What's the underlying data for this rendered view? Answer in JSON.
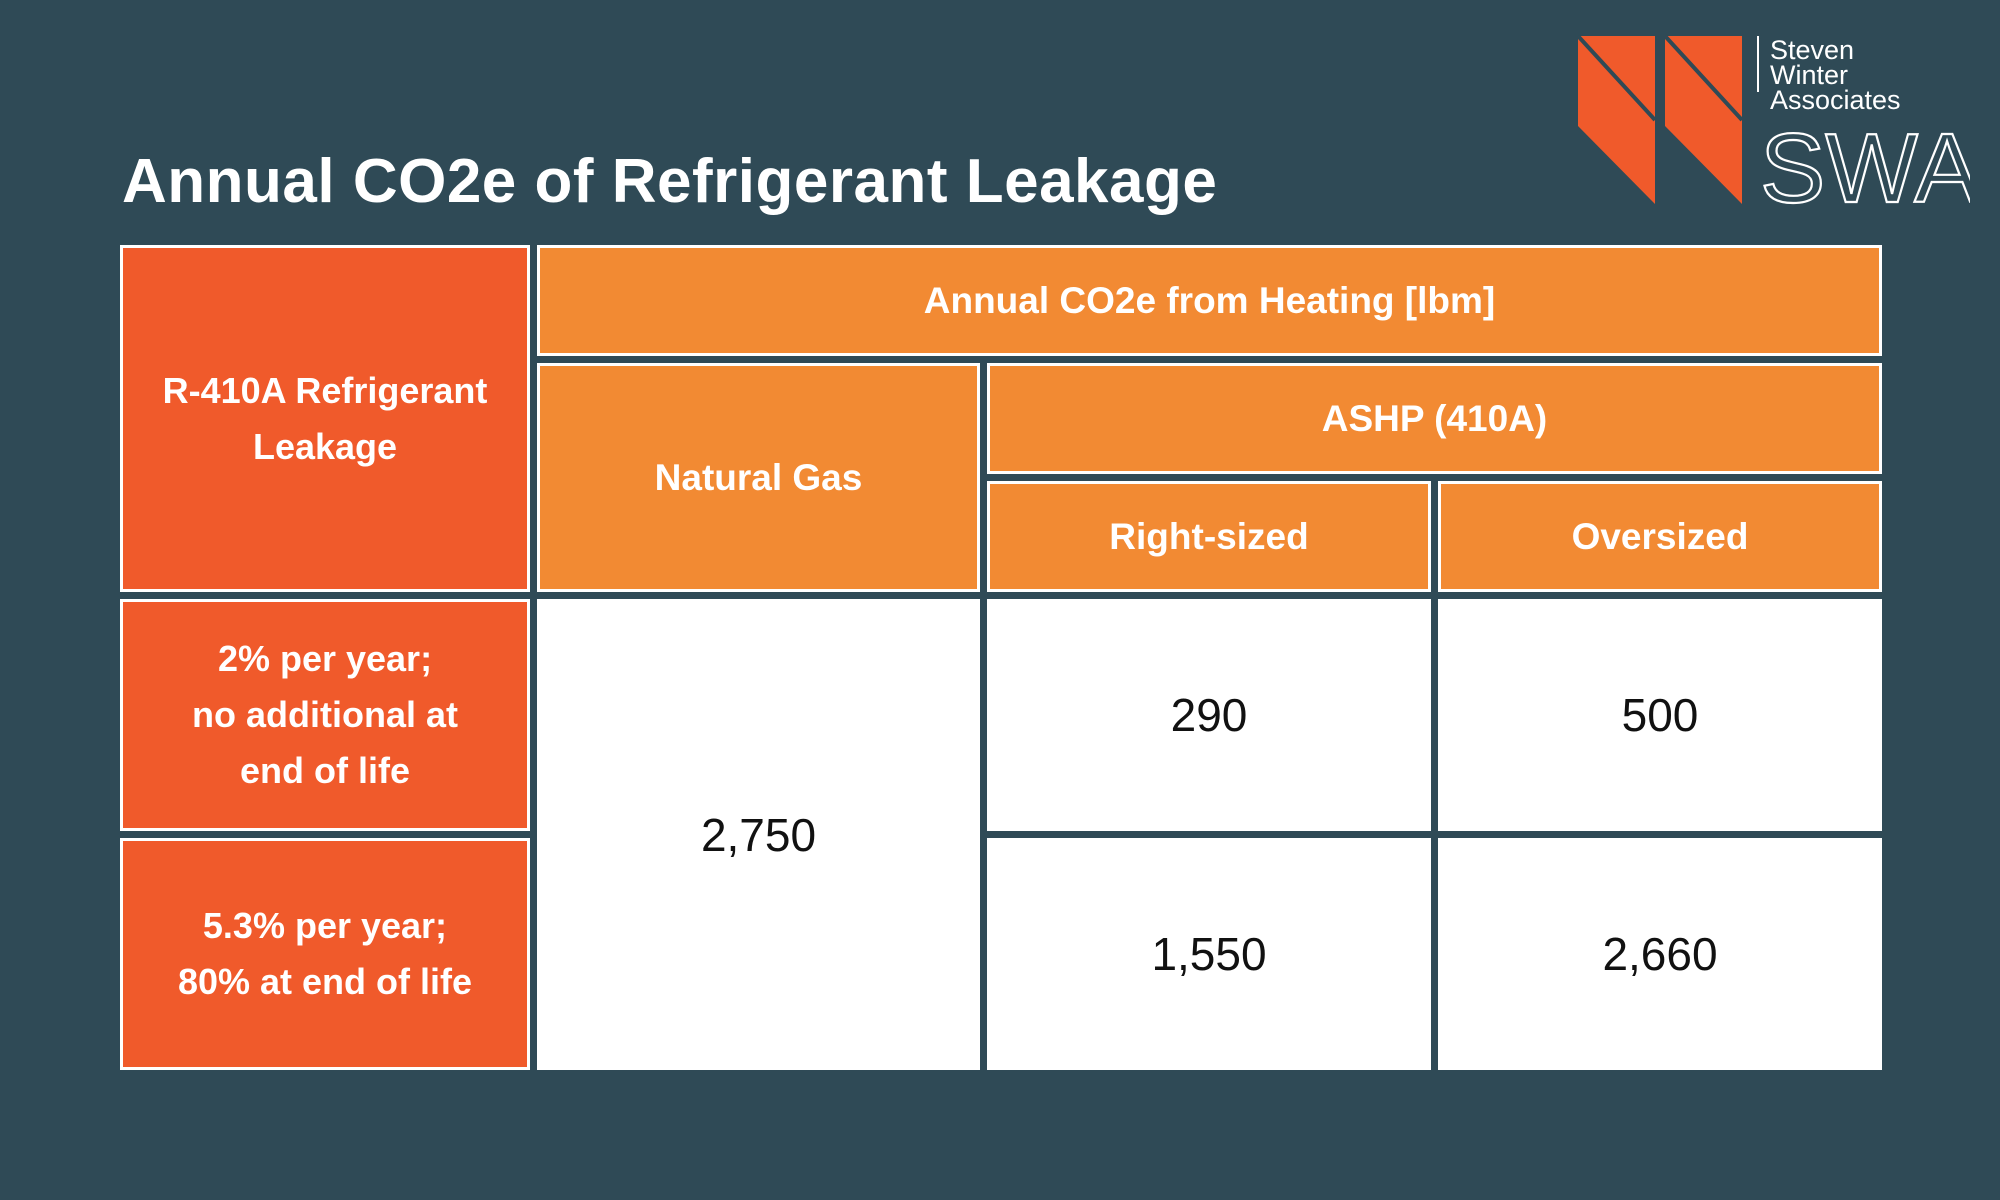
{
  "chart_data": {
    "type": "table",
    "title": "Annual CO2e of Refrigerant Leakage",
    "row_header": "R-410A Refrigerant Leakage",
    "group_header": "Annual CO2e from Heating [lbm]",
    "subgroup_header": "ASHP (410A)",
    "columns": [
      "Natural Gas",
      "Right-sized",
      "Oversized"
    ],
    "rows": [
      {
        "label": "2% per year;\nno additional at\nend of life",
        "values": [
          "2,750",
          "290",
          "500"
        ]
      },
      {
        "label": "5.3% per year;\n80% at end of life",
        "values": [
          "2,750",
          "1,550",
          "2,660"
        ]
      }
    ],
    "merged_cells": {
      "natural_gas_value": "2,750"
    }
  },
  "logo": {
    "line1": "Steven",
    "line2": "Winter",
    "line3": "Associates",
    "abbr": "SWA",
    "colors": {
      "mark": "#f05a2b",
      "text": "#ffffff"
    }
  },
  "colors": {
    "background": "#2f4a56",
    "row_header": "#f05a2b",
    "column_header": "#f28a33",
    "cell": "#ffffff"
  }
}
